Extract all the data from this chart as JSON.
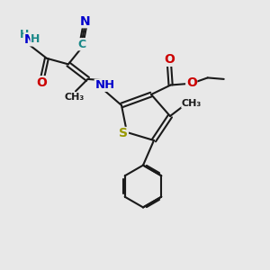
{
  "bg_color": "#e8e8e8",
  "bond_color": "#1a1a1a",
  "N_color": "#0000cc",
  "O_color": "#cc0000",
  "S_color": "#999900",
  "C_color": "#1a8888",
  "figsize": [
    3.0,
    3.0
  ],
  "dpi": 100,
  "xlim": [
    0,
    10
  ],
  "ylim": [
    0,
    10
  ]
}
